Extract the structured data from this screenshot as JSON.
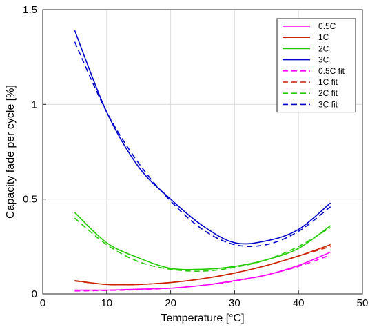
{
  "chart_data": {
    "type": "line",
    "xlabel": "Temperature [°C]",
    "ylabel": "Capacity fade per cycle [%]",
    "xlim": [
      0,
      50
    ],
    "ylim": [
      0,
      1.5
    ],
    "xticks": [
      0,
      10,
      20,
      30,
      40,
      50
    ],
    "yticks": [
      0,
      0.5,
      1,
      1.5
    ],
    "xtick_labels": [
      "0",
      "10",
      "20",
      "30",
      "40",
      "50"
    ],
    "ytick_labels": [
      "0",
      "0.5",
      "1",
      "1.5"
    ],
    "grid": true,
    "legend_position": "top-right",
    "x": [
      5,
      10,
      15,
      20,
      25,
      30,
      35,
      40,
      45
    ],
    "series": [
      {
        "name": "0.5C",
        "color": "#ff00ff",
        "style": "solid",
        "values": [
          0.02,
          0.02,
          0.025,
          0.03,
          0.045,
          0.07,
          0.1,
          0.15,
          0.22
        ]
      },
      {
        "name": "1C",
        "color": "#cc2200",
        "style": "solid",
        "values": [
          0.07,
          0.05,
          0.05,
          0.06,
          0.08,
          0.11,
          0.15,
          0.2,
          0.26
        ]
      },
      {
        "name": "2C",
        "color": "#22cc00",
        "style": "solid",
        "values": [
          0.43,
          0.27,
          0.19,
          0.135,
          0.13,
          0.145,
          0.18,
          0.24,
          0.36
        ]
      },
      {
        "name": "3C",
        "color": "#0000cc",
        "style": "solid",
        "values": [
          1.39,
          0.96,
          0.67,
          0.5,
          0.36,
          0.27,
          0.28,
          0.34,
          0.48
        ]
      },
      {
        "name": "0.5C fit",
        "color": "#ff00ff",
        "style": "dashed",
        "values": [
          0.015,
          0.018,
          0.022,
          0.03,
          0.045,
          0.067,
          0.1,
          0.145,
          0.205
        ]
      },
      {
        "name": "1C fit",
        "color": "#cc2200",
        "style": "dashed",
        "values": [
          0.068,
          0.05,
          0.05,
          0.06,
          0.08,
          0.11,
          0.15,
          0.2,
          0.25
        ]
      },
      {
        "name": "2C fit",
        "color": "#22cc00",
        "style": "dashed",
        "values": [
          0.4,
          0.26,
          0.17,
          0.13,
          0.12,
          0.14,
          0.18,
          0.25,
          0.35
        ]
      },
      {
        "name": "3C fit",
        "color": "#0000cc",
        "style": "dashed",
        "values": [
          1.33,
          0.96,
          0.69,
          0.49,
          0.34,
          0.26,
          0.26,
          0.33,
          0.46
        ]
      }
    ]
  }
}
